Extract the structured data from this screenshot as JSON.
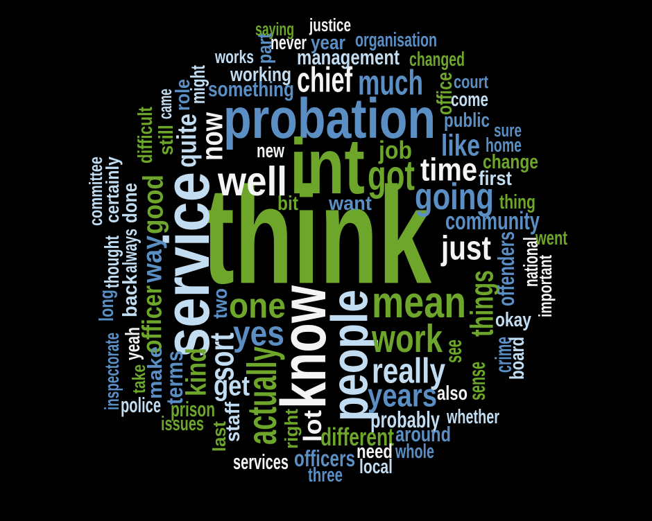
{
  "palette": {
    "green": "#6da62b",
    "blue": "#5b8fc4",
    "lightblue": "#c2ddf2",
    "white": "#f4f4f4"
  },
  "words": [
    {
      "text": "think",
      "color": "green"
    },
    {
      "text": "service",
      "color": "lightblue"
    },
    {
      "text": "probation",
      "color": "blue"
    },
    {
      "text": "int",
      "color": "green"
    },
    {
      "text": "know",
      "color": "white"
    },
    {
      "text": "people",
      "color": "lightblue"
    },
    {
      "text": "well",
      "color": "white"
    },
    {
      "text": "mean",
      "color": "green"
    },
    {
      "text": "got",
      "color": "green"
    },
    {
      "text": "work",
      "color": "green"
    },
    {
      "text": "one",
      "color": "green"
    },
    {
      "text": "going",
      "color": "blue"
    },
    {
      "text": "chief",
      "color": "white"
    },
    {
      "text": "much",
      "color": "blue"
    },
    {
      "text": "time",
      "color": "white"
    },
    {
      "text": "just",
      "color": "white"
    },
    {
      "text": "yes",
      "color": "blue"
    },
    {
      "text": "really",
      "color": "lightblue"
    },
    {
      "text": "years",
      "color": "blue"
    },
    {
      "text": "actually",
      "color": "green"
    },
    {
      "text": "like",
      "color": "blue"
    },
    {
      "text": "now",
      "color": "white"
    },
    {
      "text": "things",
      "color": "green"
    },
    {
      "text": "sort",
      "color": "lightblue"
    },
    {
      "text": "good",
      "color": "green"
    },
    {
      "text": "way",
      "color": "blue"
    },
    {
      "text": "quite",
      "color": "lightblue"
    },
    {
      "text": "officer",
      "color": "green"
    },
    {
      "text": "get",
      "color": "lightblue"
    },
    {
      "text": "kind",
      "color": "green"
    },
    {
      "text": "community",
      "color": "blue"
    },
    {
      "text": "job",
      "color": "green"
    },
    {
      "text": "something",
      "color": "blue"
    },
    {
      "text": "management",
      "color": "lightblue"
    },
    {
      "text": "working",
      "color": "lightblue"
    },
    {
      "text": "different",
      "color": "green"
    },
    {
      "text": "officers",
      "color": "blue"
    },
    {
      "text": "probably",
      "color": "lightblue"
    },
    {
      "text": "around",
      "color": "blue"
    },
    {
      "text": "lot",
      "color": "white"
    },
    {
      "text": "prison",
      "color": "green"
    },
    {
      "text": "terms",
      "color": "blue"
    },
    {
      "text": "offenders",
      "color": "blue"
    },
    {
      "text": "see",
      "color": "green"
    },
    {
      "text": "sense",
      "color": "green"
    },
    {
      "text": "crime",
      "color": "blue"
    },
    {
      "text": "back",
      "color": "lightblue"
    },
    {
      "text": "always",
      "color": "lightblue"
    },
    {
      "text": "done",
      "color": "lightblue"
    },
    {
      "text": "thought",
      "color": "lightblue"
    },
    {
      "text": "certainly",
      "color": "lightblue"
    },
    {
      "text": "committee",
      "color": "lightblue"
    },
    {
      "text": "long",
      "color": "blue"
    },
    {
      "text": "inspectorate",
      "color": "blue"
    },
    {
      "text": "yeah",
      "color": "white"
    },
    {
      "text": "take",
      "color": "green"
    },
    {
      "text": "make",
      "color": "blue"
    },
    {
      "text": "police",
      "color": "lightblue"
    },
    {
      "text": "issues",
      "color": "green"
    },
    {
      "text": "staff",
      "color": "lightblue"
    },
    {
      "text": "last",
      "color": "green"
    },
    {
      "text": "services",
      "color": "white"
    },
    {
      "text": "right",
      "color": "green"
    },
    {
      "text": "need",
      "color": "white"
    },
    {
      "text": "local",
      "color": "lightblue"
    },
    {
      "text": "three",
      "color": "blue"
    },
    {
      "text": "whole",
      "color": "blue"
    },
    {
      "text": "whether",
      "color": "lightblue"
    },
    {
      "text": "also",
      "color": "white"
    },
    {
      "text": "board",
      "color": "lightblue"
    },
    {
      "text": "okay",
      "color": "lightblue"
    },
    {
      "text": "national",
      "color": "white"
    },
    {
      "text": "important",
      "color": "white"
    },
    {
      "text": "went",
      "color": "green"
    },
    {
      "text": "thing",
      "color": "green"
    },
    {
      "text": "first",
      "color": "lightblue"
    },
    {
      "text": "change",
      "color": "green"
    },
    {
      "text": "home",
      "color": "blue"
    },
    {
      "text": "sure",
      "color": "blue"
    },
    {
      "text": "public",
      "color": "blue"
    },
    {
      "text": "come",
      "color": "lightblue"
    },
    {
      "text": "court",
      "color": "blue"
    },
    {
      "text": "office",
      "color": "green"
    },
    {
      "text": "changed",
      "color": "green"
    },
    {
      "text": "organisation",
      "color": "blue"
    },
    {
      "text": "year",
      "color": "blue"
    },
    {
      "text": "never",
      "color": "white"
    },
    {
      "text": "part",
      "color": "blue"
    },
    {
      "text": "justice",
      "color": "white"
    },
    {
      "text": "saying",
      "color": "green"
    },
    {
      "text": "works",
      "color": "lightblue"
    },
    {
      "text": "might",
      "color": "lightblue"
    },
    {
      "text": "role",
      "color": "blue"
    },
    {
      "text": "came",
      "color": "lightblue"
    },
    {
      "text": "still",
      "color": "green"
    },
    {
      "text": "difficult",
      "color": "green"
    },
    {
      "text": "new",
      "color": "white"
    },
    {
      "text": "bit",
      "color": "green"
    },
    {
      "text": "want",
      "color": "blue"
    },
    {
      "text": "two",
      "color": "blue"
    }
  ]
}
